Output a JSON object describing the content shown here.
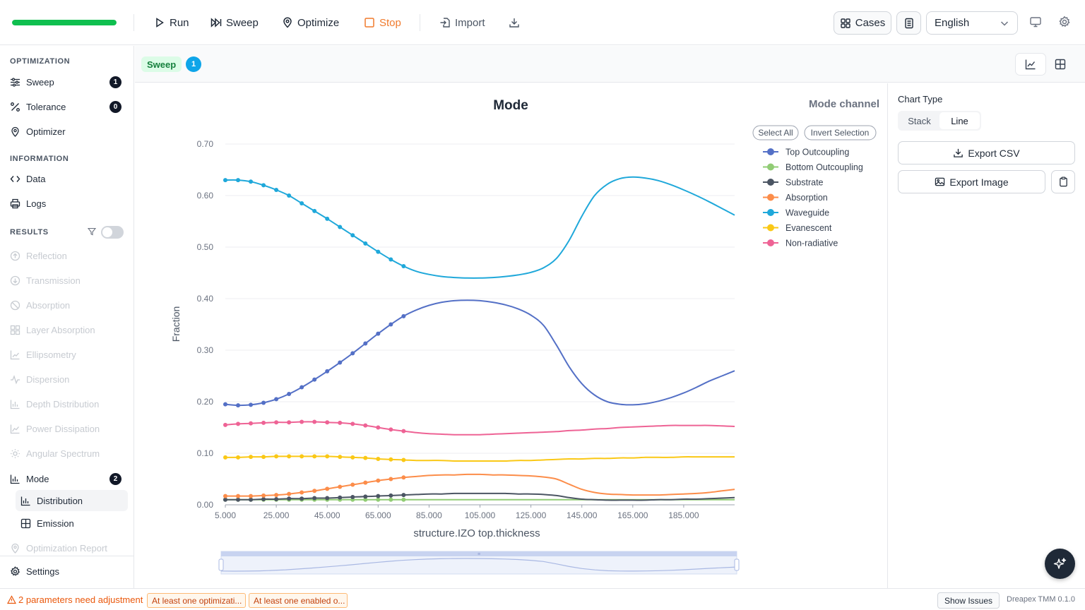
{
  "toolbar": {
    "progress": 1.0,
    "progress_color": "#0fbf4f",
    "run": "Run",
    "sweep": "Sweep",
    "optimize": "Optimize",
    "stop": "Stop",
    "import": "Import",
    "cases": "Cases",
    "language": "English"
  },
  "sidebar": {
    "optimization_title": "OPTIMIZATION",
    "optimization_items": [
      {
        "label": "Sweep",
        "badge": "1",
        "icon": "sliders-icon"
      },
      {
        "label": "Tolerance",
        "badge": "0",
        "icon": "percent-icon"
      },
      {
        "label": "Optimizer",
        "icon": "pin-icon"
      }
    ],
    "information_title": "INFORMATION",
    "information_items": [
      {
        "label": "Data",
        "icon": "code-icon"
      },
      {
        "label": "Logs",
        "icon": "printer-icon"
      }
    ],
    "results_title": "RESULTS",
    "results_items": [
      {
        "label": "Reflection",
        "icon": "circle-up-icon"
      },
      {
        "label": "Transmission",
        "icon": "circle-down-icon"
      },
      {
        "label": "Absorption",
        "icon": "ban-icon"
      },
      {
        "label": "Layer Absorption",
        "icon": "layers-icon"
      },
      {
        "label": "Ellipsometry",
        "icon": "trend-icon"
      },
      {
        "label": "Dispersion",
        "icon": "pulse-icon"
      },
      {
        "label": "Depth Distribution",
        "icon": "bar-chart-icon"
      },
      {
        "label": "Power Dissipation",
        "icon": "area-chart-icon"
      },
      {
        "label": "Angular Spectrum",
        "icon": "sun-icon"
      }
    ],
    "mode": {
      "label": "Mode",
      "badge": "2"
    },
    "mode_sub": [
      {
        "label": "Distribution"
      },
      {
        "label": "Emission"
      }
    ],
    "optimization_report": "Optimization Report",
    "settings": "Settings"
  },
  "main": {
    "sweep_tag": "Sweep",
    "sweep_count": "1"
  },
  "right_panel": {
    "chart_type_label": "Chart Type",
    "chart_types": [
      "Stack",
      "Line"
    ],
    "selected_type": "Line",
    "export_csv": "Export CSV",
    "export_image": "Export Image"
  },
  "chart_data": {
    "type": "line",
    "title": "Mode",
    "channel_label": "Mode channel",
    "xlabel": "structure.IZO top.thickness",
    "ylabel": "Fraction",
    "xlim": [
      5,
      205
    ],
    "ylim": [
      0,
      0.7
    ],
    "x_ticks": [
      "5.000",
      "25.000",
      "45.000",
      "65.000",
      "85.000",
      "105.000",
      "125.000",
      "145.000",
      "165.000",
      "185.000"
    ],
    "y_ticks": [
      "0.00",
      "0.10",
      "0.20",
      "0.30",
      "0.40",
      "0.50",
      "0.60",
      "0.70"
    ],
    "legend_buttons": [
      "Select All",
      "Invert Selection"
    ],
    "legend_position": "top-right",
    "grid": true,
    "marker_until_x": 75,
    "x": [
      5,
      10,
      15,
      20,
      25,
      30,
      35,
      40,
      45,
      50,
      55,
      60,
      65,
      70,
      75,
      80,
      85,
      90,
      95,
      100,
      105,
      110,
      115,
      120,
      125,
      130,
      135,
      140,
      145,
      150,
      155,
      160,
      165,
      170,
      175,
      180,
      185,
      190,
      195,
      200,
      205
    ],
    "series": [
      {
        "name": "Top Outcoupling",
        "color": "#5470c6",
        "values": [
          0.195,
          0.193,
          0.194,
          0.198,
          0.205,
          0.215,
          0.228,
          0.243,
          0.259,
          0.276,
          0.294,
          0.313,
          0.332,
          0.35,
          0.366,
          0.378,
          0.387,
          0.393,
          0.396,
          0.397,
          0.396,
          0.393,
          0.388,
          0.38,
          0.368,
          0.348,
          0.31,
          0.268,
          0.235,
          0.213,
          0.2,
          0.195,
          0.194,
          0.196,
          0.201,
          0.208,
          0.217,
          0.228,
          0.24,
          0.25,
          0.26
        ]
      },
      {
        "name": "Bottom Outcoupling",
        "color": "#91cc75",
        "values": [
          0.01,
          0.01,
          0.01,
          0.01,
          0.01,
          0.01,
          0.01,
          0.01,
          0.01,
          0.01,
          0.01,
          0.01,
          0.01,
          0.01,
          0.01,
          0.01,
          0.01,
          0.01,
          0.01,
          0.01,
          0.01,
          0.01,
          0.01,
          0.01,
          0.01,
          0.01,
          0.01,
          0.01,
          0.01,
          0.01,
          0.01,
          0.01,
          0.01,
          0.01,
          0.01,
          0.01,
          0.01,
          0.01,
          0.01,
          0.01,
          0.01
        ]
      },
      {
        "name": "Substrate",
        "color": "#4b5563",
        "values": [
          0.01,
          0.01,
          0.01,
          0.011,
          0.011,
          0.012,
          0.012,
          0.013,
          0.013,
          0.014,
          0.015,
          0.016,
          0.017,
          0.018,
          0.019,
          0.02,
          0.021,
          0.021,
          0.022,
          0.022,
          0.022,
          0.022,
          0.022,
          0.021,
          0.021,
          0.02,
          0.018,
          0.014,
          0.011,
          0.01,
          0.009,
          0.009,
          0.009,
          0.009,
          0.01,
          0.01,
          0.011,
          0.011,
          0.012,
          0.013,
          0.014
        ]
      },
      {
        "name": "Absorption",
        "color": "#fc8d4a",
        "values": [
          0.017,
          0.017,
          0.017,
          0.018,
          0.019,
          0.021,
          0.024,
          0.027,
          0.031,
          0.035,
          0.039,
          0.043,
          0.047,
          0.05,
          0.053,
          0.055,
          0.057,
          0.058,
          0.058,
          0.059,
          0.059,
          0.058,
          0.058,
          0.057,
          0.056,
          0.054,
          0.05,
          0.04,
          0.03,
          0.024,
          0.021,
          0.02,
          0.019,
          0.019,
          0.019,
          0.02,
          0.021,
          0.022,
          0.024,
          0.027,
          0.03
        ]
      },
      {
        "name": "Waveguide",
        "color": "#1fa8da",
        "values": [
          0.63,
          0.63,
          0.627,
          0.62,
          0.611,
          0.6,
          0.585,
          0.57,
          0.555,
          0.539,
          0.523,
          0.507,
          0.491,
          0.476,
          0.463,
          0.453,
          0.447,
          0.443,
          0.441,
          0.44,
          0.44,
          0.441,
          0.443,
          0.446,
          0.451,
          0.46,
          0.478,
          0.513,
          0.56,
          0.6,
          0.622,
          0.633,
          0.636,
          0.634,
          0.629,
          0.621,
          0.611,
          0.6,
          0.588,
          0.575,
          0.562
        ]
      },
      {
        "name": "Evanescent",
        "color": "#fac816",
        "values": [
          0.092,
          0.092,
          0.093,
          0.093,
          0.094,
          0.094,
          0.094,
          0.094,
          0.094,
          0.093,
          0.092,
          0.091,
          0.089,
          0.088,
          0.087,
          0.086,
          0.086,
          0.086,
          0.085,
          0.085,
          0.085,
          0.085,
          0.085,
          0.086,
          0.086,
          0.087,
          0.088,
          0.089,
          0.089,
          0.09,
          0.09,
          0.091,
          0.091,
          0.092,
          0.092,
          0.092,
          0.093,
          0.093,
          0.093,
          0.093,
          0.093
        ]
      },
      {
        "name": "Non-radiative",
        "color": "#ee6395",
        "values": [
          0.155,
          0.157,
          0.158,
          0.159,
          0.16,
          0.16,
          0.161,
          0.161,
          0.16,
          0.159,
          0.157,
          0.154,
          0.15,
          0.146,
          0.143,
          0.14,
          0.138,
          0.137,
          0.136,
          0.136,
          0.136,
          0.137,
          0.138,
          0.139,
          0.14,
          0.141,
          0.142,
          0.144,
          0.145,
          0.147,
          0.148,
          0.15,
          0.151,
          0.152,
          0.153,
          0.154,
          0.154,
          0.154,
          0.154,
          0.153,
          0.152
        ]
      }
    ]
  },
  "status": {
    "warning": "2 parameters need adjustment",
    "chips": [
      "At least one optimizati...",
      "At least one enabled o..."
    ],
    "show_issues": "Show Issues",
    "version": "Dreapex TMM 0.1.0"
  }
}
